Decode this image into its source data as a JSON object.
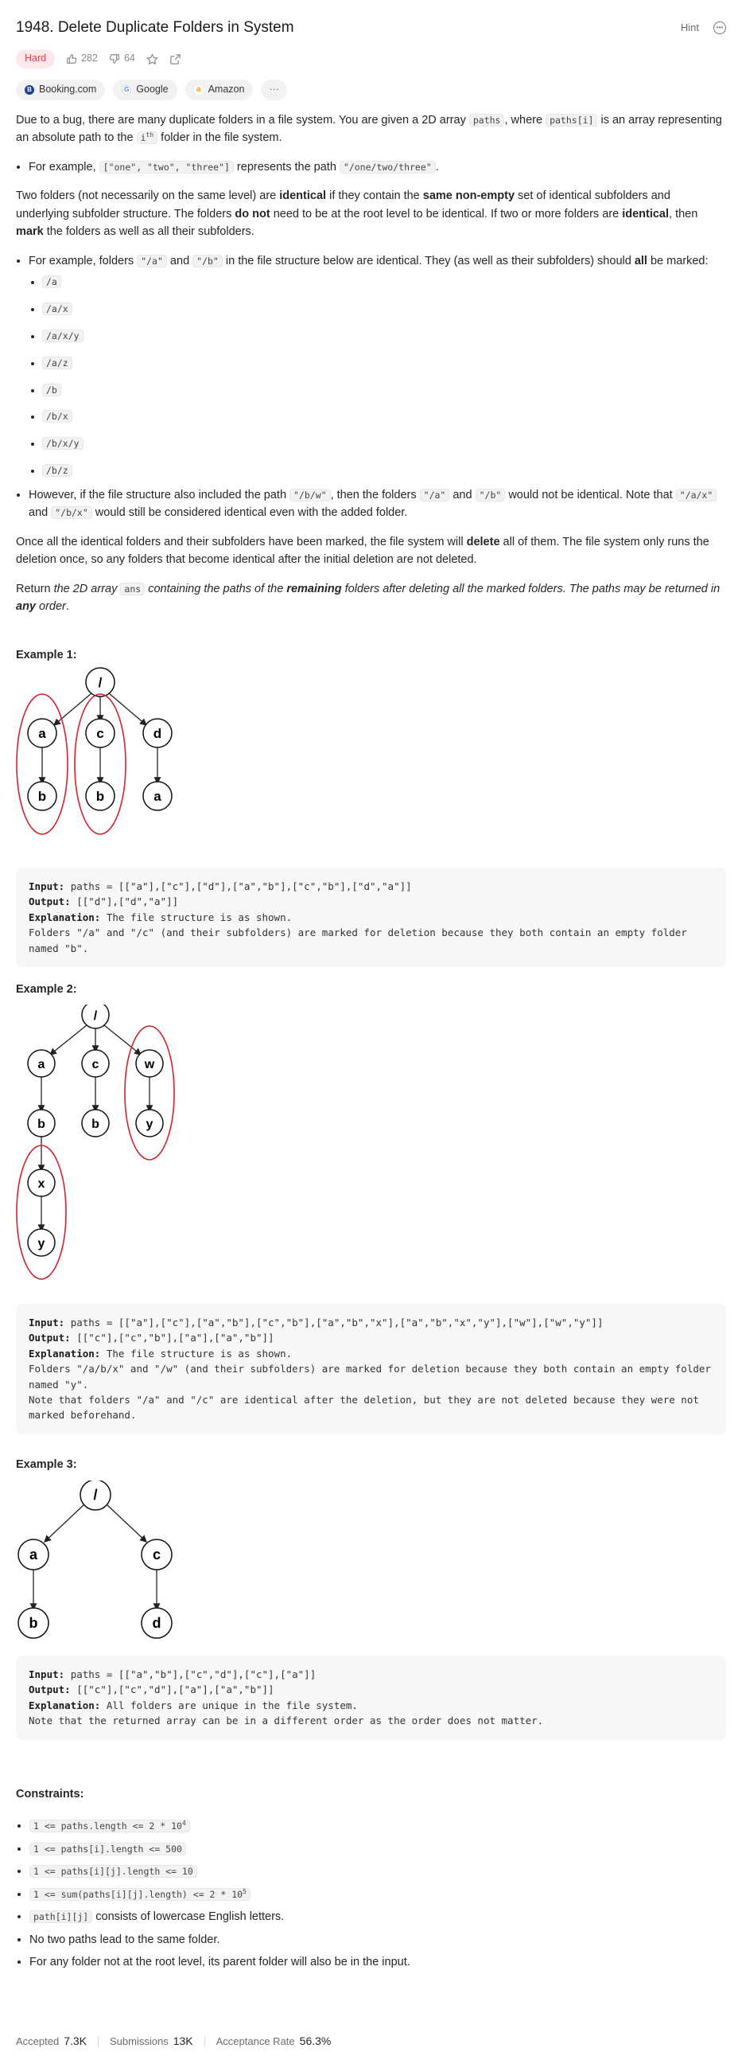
{
  "header": {
    "title": "1948. Delete Duplicate Folders in System",
    "hint_label": "Hint"
  },
  "meta": {
    "difficulty": "Hard",
    "likes": "282",
    "dislikes": "64"
  },
  "companies": [
    {
      "name": "Booking.com",
      "color": "#1a3e8c",
      "icon": "booking-icon"
    },
    {
      "name": "Google",
      "color": "#4285f4",
      "icon": "google-icon"
    },
    {
      "name": "Amazon",
      "color": "#ff9900",
      "icon": "amazon-icon"
    }
  ],
  "more_label": "···",
  "description": {
    "p1_a": "Due to a bug, there are many duplicate folders in a file system. You are given a 2D array ",
    "p1_code1": "paths",
    "p1_b": ", where ",
    "p1_code2": "paths[i]",
    "p1_c": " is an array representing an absolute path to the ",
    "p1_code3": "i",
    "p1_sup": "th",
    "p1_d": " folder in the file system.",
    "b1_a": "For example, ",
    "b1_code1": "[\"one\", \"two\", \"three\"]",
    "b1_b": " represents the path ",
    "b1_code2": "\"/one/two/three\"",
    "b1_c": ".",
    "p2_a": "Two folders (not necessarily on the same level) are ",
    "p2_b1": "identical",
    "p2_c": " if they contain the ",
    "p2_b2": "same non-empty",
    "p2_d": " set of identical subfolders and underlying subfolder structure. The folders ",
    "p2_b3": "do not",
    "p2_e": " need to be at the root level to be identical. If two or more folders are ",
    "p2_b4": "identical",
    "p2_f": ", then ",
    "p2_b5": "mark",
    "p2_g": " the folders as well as all their subfolders.",
    "b2_a": "For example, folders ",
    "b2_code1": "\"/a\"",
    "b2_b": " and ",
    "b2_code2": "\"/b\"",
    "b2_c": " in the file structure below are identical. They (as well as their subfolders) should ",
    "b2_bold": "all",
    "b2_d": " be marked:",
    "sub_items": [
      "/a",
      "/a/x",
      "/a/x/y",
      "/a/z",
      "/b",
      "/b/x",
      "/b/x/y",
      "/b/z"
    ],
    "b3_a": "However, if the file structure also included the path ",
    "b3_code1": "\"/b/w\"",
    "b3_b": ", then the folders ",
    "b3_code2": "\"/a\"",
    "b3_c": " and ",
    "b3_code3": "\"/b\"",
    "b3_d": " would not be identical. Note that ",
    "b3_code4": "\"/a/x\"",
    "b3_e": " and ",
    "b3_code5": "\"/b/x\"",
    "b3_f": " would still be considered identical even with the added folder.",
    "p3_a": "Once all the identical folders and their subfolders have been marked, the file system will ",
    "p3_bold": "delete",
    "p3_b": " all of them. The file system only runs the deletion once, so any folders that become identical after the initial deletion are not deleted.",
    "p4_a": "Return ",
    "p4_i1": "the 2D array ",
    "p4_code": "ans",
    "p4_i2": " containing the paths of the ",
    "p4_bi": "remaining",
    "p4_i3": " folders after deleting all the marked folders. The paths may be returned in ",
    "p4_bi2": "any",
    "p4_i4": " order",
    "p4_end": "."
  },
  "examples": [
    {
      "title": "Example 1:",
      "input_label": "Input:",
      "input": "paths = [[\"a\"],[\"c\"],[\"d\"],[\"a\",\"b\"],[\"c\",\"b\"],[\"d\",\"a\"]]",
      "output_label": "Output:",
      "output": "[[\"d\"],[\"d\",\"a\"]]",
      "explanation_label": "Explanation:",
      "explanation": "The file structure is as shown.\nFolders \"/a\" and \"/c\" (and their subfolders) are marked for deletion because they both contain an empty folder named \"b\".",
      "nodes": {
        "root": "/",
        "a": "a",
        "c": "c",
        "d": "d",
        "ab": "b",
        "cb": "b",
        "da": "a"
      }
    },
    {
      "title": "Example 2:",
      "input_label": "Input:",
      "input": "paths = [[\"a\"],[\"c\"],[\"a\",\"b\"],[\"c\",\"b\"],[\"a\",\"b\",\"x\"],[\"a\",\"b\",\"x\",\"y\"],[\"w\"],[\"w\",\"y\"]]",
      "output_label": "Output:",
      "output": "[[\"c\"],[\"c\",\"b\"],[\"a\"],[\"a\",\"b\"]]",
      "explanation_label": "Explanation:",
      "explanation": "The file structure is as shown.\nFolders \"/a/b/x\" and \"/w\" (and their subfolders) are marked for deletion because they both contain an empty folder named \"y\".\nNote that folders \"/a\" and \"/c\" are identical after the deletion, but they are not deleted because they were not marked beforehand.",
      "nodes": {
        "root": "/",
        "a": "a",
        "c": "c",
        "w": "w",
        "ab": "b",
        "cb": "b",
        "wy": "y",
        "abx": "x",
        "abxy": "y"
      }
    },
    {
      "title": "Example 3:",
      "input_label": "Input:",
      "input": "paths = [[\"a\",\"b\"],[\"c\",\"d\"],[\"c\"],[\"a\"]]",
      "output_label": "Output:",
      "output": "[[\"c\"],[\"c\",\"d\"],[\"a\"],[\"a\",\"b\"]]",
      "explanation_label": "Explanation:",
      "explanation": "All folders are unique in the file system.\nNote that the returned array can be in a different order as the order does not matter.",
      "nodes": {
        "root": "/",
        "a": "a",
        "c": "c",
        "ab": "b",
        "cd": "d"
      }
    }
  ],
  "constraints": {
    "title": "Constraints:",
    "c1_code": "1 <= paths.length <= 2 * 10",
    "c1_sup": "4",
    "c2_code": "1 <= paths[i].length <= 500",
    "c3_code": "1 <= paths[i][j].length <= 10",
    "c4_code": "1 <= sum(paths[i][j].length) <= 2 * 10",
    "c4_sup": "5",
    "c5_code": "path[i][j]",
    "c5_text": " consists of lowercase English letters.",
    "c6_text": "No two paths lead to the same folder.",
    "c7_text": "For any folder not at the root level, its parent folder will also be in the input."
  },
  "stats": {
    "accepted_label": "Accepted",
    "accepted": "7.3K",
    "submissions_label": "Submissions",
    "submissions": "13K",
    "acceptance_label": "Acceptance Rate",
    "acceptance": "56.3%"
  },
  "colors": {
    "hard": "#e0424e",
    "highlight_ellipse": "#d0242b"
  }
}
